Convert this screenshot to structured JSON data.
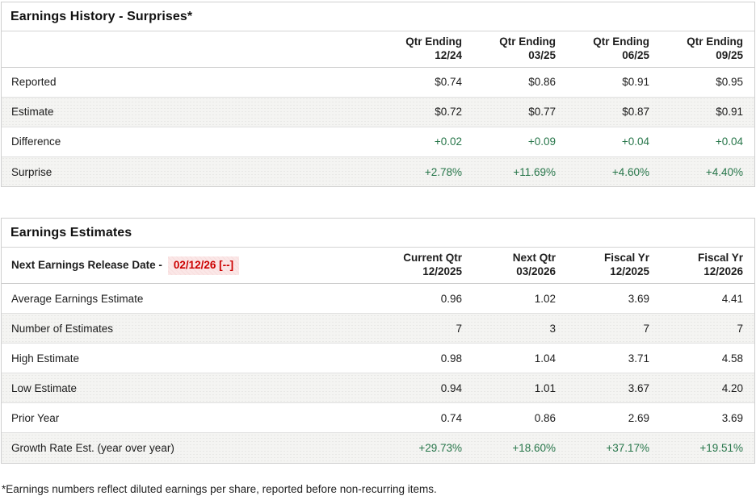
{
  "colors": {
    "positive_green": "#27764a",
    "alert_red": "#cc0000",
    "alt_row_bg": "#f4f4f2"
  },
  "history": {
    "title": "Earnings History - Surprises*",
    "columns": [
      {
        "line1": "Qtr Ending",
        "line2": "12/24"
      },
      {
        "line1": "Qtr Ending",
        "line2": "03/25"
      },
      {
        "line1": "Qtr Ending",
        "line2": "06/25"
      },
      {
        "line1": "Qtr Ending",
        "line2": "09/25"
      }
    ],
    "rows": [
      {
        "label": "Reported",
        "values": [
          "$0.74",
          "$0.86",
          "$0.91",
          "$0.95"
        ]
      },
      {
        "label": "Estimate",
        "values": [
          "$0.72",
          "$0.77",
          "$0.87",
          "$0.91"
        ]
      },
      {
        "label": "Difference",
        "values": [
          "+0.02",
          "+0.09",
          "+0.04",
          "+0.04"
        ]
      },
      {
        "label": "Surprise",
        "values": [
          "+2.78%",
          "+11.69%",
          "+4.60%",
          "+4.40%"
        ]
      }
    ]
  },
  "estimates": {
    "title": "Earnings Estimates",
    "release_date_label": "Next Earnings Release Date -",
    "release_date_value": "02/12/26 [--]",
    "columns": [
      {
        "line1": "Current Qtr",
        "line2": "12/2025"
      },
      {
        "line1": "Next Qtr",
        "line2": "03/2026"
      },
      {
        "line1": "Fiscal Yr",
        "line2": "12/2025"
      },
      {
        "line1": "Fiscal Yr",
        "line2": "12/2026"
      }
    ],
    "rows": [
      {
        "label": "Average Earnings Estimate",
        "values": [
          "0.96",
          "1.02",
          "3.69",
          "4.41"
        ]
      },
      {
        "label": "Number of Estimates",
        "values": [
          "7",
          "3",
          "7",
          "7"
        ]
      },
      {
        "label": "High Estimate",
        "values": [
          "0.98",
          "1.04",
          "3.71",
          "4.58"
        ]
      },
      {
        "label": "Low Estimate",
        "values": [
          "0.94",
          "1.01",
          "3.67",
          "4.20"
        ]
      },
      {
        "label": "Prior Year",
        "values": [
          "0.74",
          "0.86",
          "2.69",
          "3.69"
        ]
      },
      {
        "label": "Growth Rate Est. (year over year)",
        "values": [
          "+29.73%",
          "+18.60%",
          "+37.17%",
          "+19.51%"
        ]
      }
    ]
  },
  "page": {
    "footnote": "*Earnings numbers reflect diluted earnings per share, reported before non-recurring items."
  }
}
